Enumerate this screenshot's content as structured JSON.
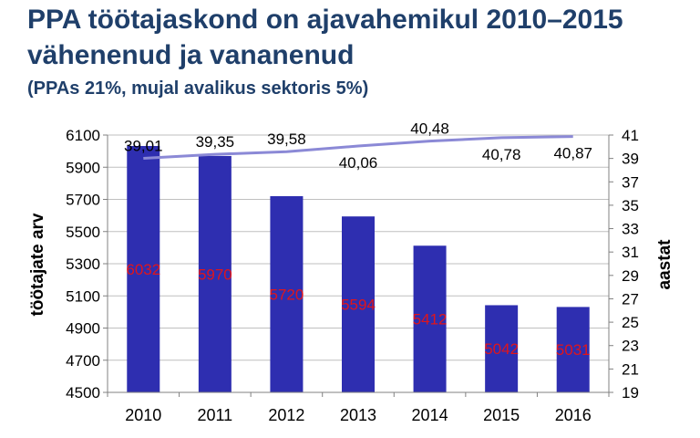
{
  "title": "PPA töötajaskond on ajavahemikul 2010–2015 vähenenud ja vananenud",
  "subtitle": "(PPAs 21%, mujal avalikus sektoris 5%)",
  "colors": {
    "title": "#1f3f6a",
    "bar": "#2e2eb0",
    "line": "#8b89d6",
    "bar_label": "#e0151b",
    "grid": "#bfbfbf",
    "text": "#000000"
  },
  "chart_data": {
    "type": "bar",
    "categories": [
      "2010",
      "2011",
      "2012",
      "2013",
      "2014",
      "2015",
      "2016"
    ],
    "series": [
      {
        "name": "töötajate arv",
        "type": "bar",
        "axis": "left",
        "values": [
          6032,
          5970,
          5720,
          5594,
          5412,
          5042,
          5031
        ],
        "labels": [
          "6032",
          "5970",
          "5720",
          "5594",
          "5412",
          "5042",
          "5031"
        ]
      },
      {
        "name": "aastat",
        "type": "line",
        "axis": "right",
        "values": [
          39.01,
          39.35,
          39.58,
          40.06,
          40.48,
          40.78,
          40.87
        ],
        "labels": [
          "39,01",
          "39,35",
          "39,58",
          "40,06",
          "40,48",
          "40,78",
          "40,87"
        ]
      }
    ],
    "ylabel": "töötajate arv",
    "y2label": "aastat",
    "ylim": [
      4500,
      6100
    ],
    "y2lim": [
      19,
      41
    ],
    "yticks": [
      "4500",
      "4700",
      "4900",
      "5100",
      "5300",
      "5500",
      "5700",
      "5900",
      "6100"
    ],
    "y2ticks": [
      "19",
      "21",
      "23",
      "25",
      "27",
      "29",
      "31",
      "33",
      "35",
      "37",
      "39",
      "41"
    ],
    "grid": true,
    "legend": "none"
  }
}
